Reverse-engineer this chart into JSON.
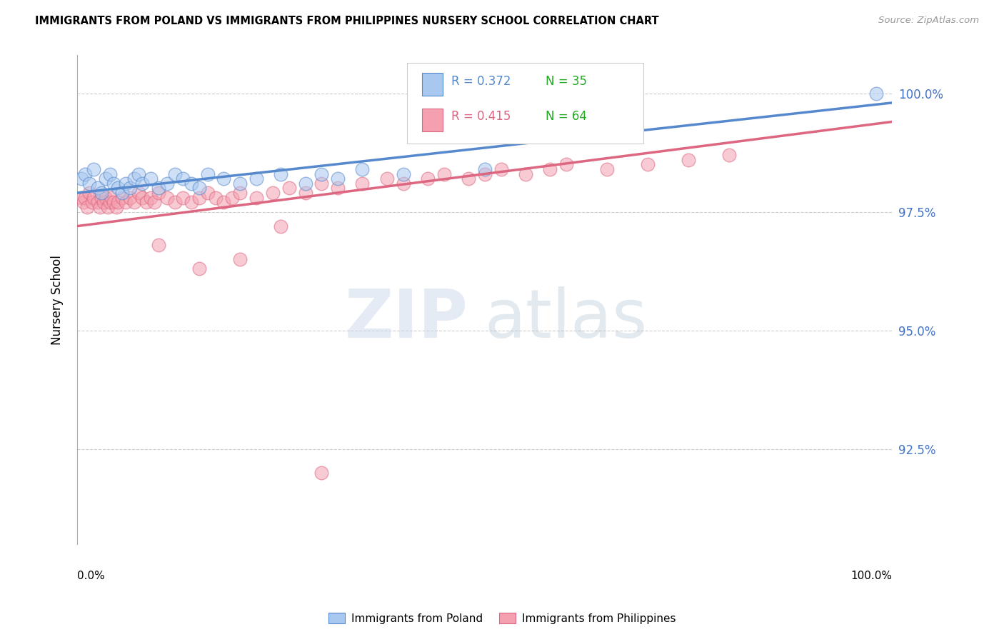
{
  "title": "IMMIGRANTS FROM POLAND VS IMMIGRANTS FROM PHILIPPINES NURSERY SCHOOL CORRELATION CHART",
  "source": "Source: ZipAtlas.com",
  "ylabel": "Nursery School",
  "ytick_labels": [
    "100.0%",
    "97.5%",
    "95.0%",
    "92.5%"
  ],
  "ytick_values": [
    1.0,
    0.975,
    0.95,
    0.925
  ],
  "xlim": [
    0.0,
    1.0
  ],
  "ylim": [
    0.905,
    1.008
  ],
  "legend_poland_R": "R = 0.372",
  "legend_poland_N": "N = 35",
  "legend_philippines_R": "R = 0.415",
  "legend_philippines_N": "N = 64",
  "poland_color": "#a8c8f0",
  "philippines_color": "#f4a0b0",
  "poland_line_color": "#5588cc",
  "philippines_line_color": "#dd6680",
  "poland_x": [
    0.005,
    0.01,
    0.015,
    0.02,
    0.025,
    0.03,
    0.035,
    0.04,
    0.045,
    0.05,
    0.055,
    0.06,
    0.065,
    0.07,
    0.075,
    0.08,
    0.09,
    0.1,
    0.11,
    0.12,
    0.13,
    0.14,
    0.15,
    0.16,
    0.18,
    0.2,
    0.22,
    0.25,
    0.28,
    0.3,
    0.32,
    0.35,
    0.4,
    0.5,
    0.98
  ],
  "poland_y": [
    0.982,
    0.983,
    0.981,
    0.984,
    0.98,
    0.979,
    0.982,
    0.983,
    0.981,
    0.98,
    0.979,
    0.981,
    0.98,
    0.982,
    0.983,
    0.981,
    0.982,
    0.98,
    0.981,
    0.983,
    0.982,
    0.981,
    0.98,
    0.983,
    0.982,
    0.981,
    0.982,
    0.983,
    0.981,
    0.983,
    0.982,
    0.984,
    0.983,
    0.984,
    1.0
  ],
  "philippines_x": [
    0.005,
    0.008,
    0.01,
    0.012,
    0.015,
    0.018,
    0.02,
    0.025,
    0.028,
    0.03,
    0.032,
    0.035,
    0.038,
    0.04,
    0.042,
    0.045,
    0.048,
    0.05,
    0.055,
    0.06,
    0.065,
    0.07,
    0.075,
    0.08,
    0.085,
    0.09,
    0.095,
    0.1,
    0.11,
    0.12,
    0.13,
    0.14,
    0.15,
    0.16,
    0.17,
    0.18,
    0.19,
    0.2,
    0.22,
    0.24,
    0.26,
    0.28,
    0.3,
    0.32,
    0.35,
    0.38,
    0.4,
    0.43,
    0.45,
    0.48,
    0.5,
    0.52,
    0.55,
    0.58,
    0.6,
    0.65,
    0.7,
    0.75,
    0.8,
    0.25,
    0.1,
    0.2,
    0.15,
    0.3
  ],
  "philippines_y": [
    0.978,
    0.977,
    0.978,
    0.976,
    0.979,
    0.977,
    0.978,
    0.977,
    0.976,
    0.978,
    0.977,
    0.978,
    0.976,
    0.977,
    0.978,
    0.977,
    0.976,
    0.977,
    0.978,
    0.977,
    0.978,
    0.977,
    0.979,
    0.978,
    0.977,
    0.978,
    0.977,
    0.979,
    0.978,
    0.977,
    0.978,
    0.977,
    0.978,
    0.979,
    0.978,
    0.977,
    0.978,
    0.979,
    0.978,
    0.979,
    0.98,
    0.979,
    0.981,
    0.98,
    0.981,
    0.982,
    0.981,
    0.982,
    0.983,
    0.982,
    0.983,
    0.984,
    0.983,
    0.984,
    0.985,
    0.984,
    0.985,
    0.986,
    0.987,
    0.972,
    0.968,
    0.965,
    0.963,
    0.92
  ]
}
